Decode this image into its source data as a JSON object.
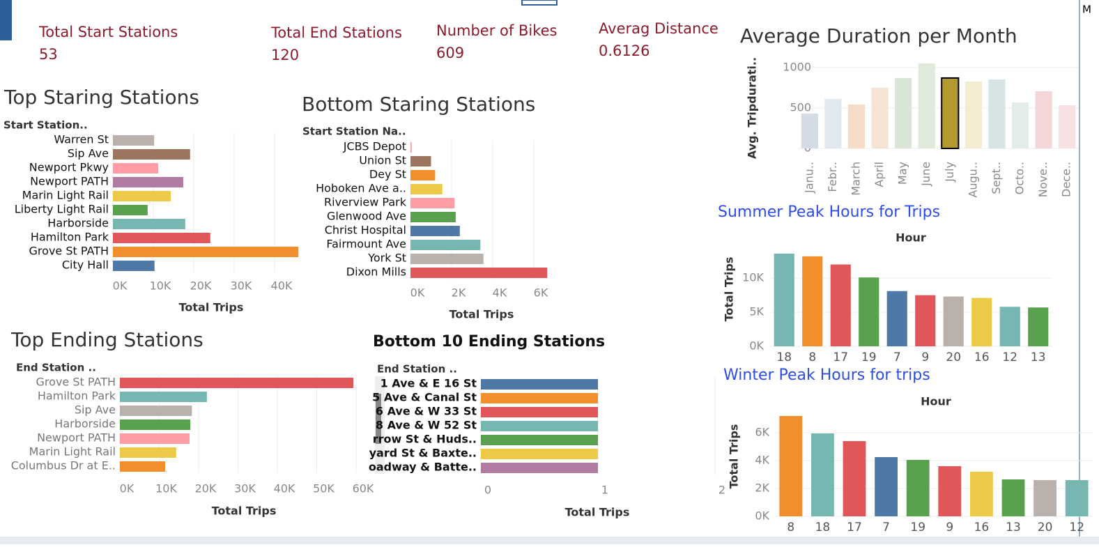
{
  "kpis": [
    {
      "label": "Total Start Stations",
      "value": 53
    },
    {
      "label": "Total End  Stations",
      "value": 120
    },
    {
      "label": "Number of Bikes",
      "value": 609
    },
    {
      "label": "Averag Distance",
      "value": 0.6126
    }
  ],
  "legend_title": "M",
  "chart_data": [
    {
      "type": "hbar",
      "title": "Top Staring Stations",
      "category_header": "Start Station..",
      "x_label": "Total Trips",
      "categories": [
        "Warren St",
        "Sip Ave",
        "Newport Pkwy",
        "Newport PATH",
        "Marin Light Rail",
        "Liberty Light Rail",
        "Harborside",
        "Hamilton Park",
        "Grove St PATH",
        "City Hall"
      ],
      "values": [
        10200,
        19100,
        11200,
        17400,
        14300,
        8600,
        17900,
        24100,
        45900,
        10300
      ],
      "colors": [
        "#bab0ac",
        "#9c755f",
        "#ff9da7",
        "#b07aa1",
        "#edc948",
        "#59a14f",
        "#76b7b2",
        "#e15759",
        "#f28e2b",
        "#4e79a7"
      ],
      "xlim": [
        0,
        46000
      ],
      "xticks": [
        {
          "value": 0,
          "label": "0K"
        },
        {
          "value": 10000,
          "label": "10K"
        },
        {
          "value": 20000,
          "label": "20K"
        },
        {
          "value": 30000,
          "label": "30K"
        },
        {
          "value": 40000,
          "label": "40K"
        }
      ]
    },
    {
      "type": "hbar",
      "title": "Bottom Staring Stations",
      "category_header": "Start Station Na..",
      "x_label": "Total Trips",
      "categories": [
        "JCBS Depot",
        "Union St",
        "Dey St",
        "Hoboken Ave a..",
        "Riverview Park",
        "Glenwood Ave",
        "Christ Hospital",
        "Fairmount Ave",
        "York St",
        "Dixon Mills"
      ],
      "values": [
        60,
        1000,
        1200,
        1550,
        2150,
        2200,
        2400,
        3400,
        3550,
        6650
      ],
      "colors": [
        "#ff9da7",
        "#9c755f",
        "#f28e2b",
        "#edc948",
        "#ff9da7",
        "#59a14f",
        "#4e79a7",
        "#76b7b2",
        "#bab0ac",
        "#e15759"
      ],
      "xlim": [
        0,
        6650
      ],
      "xticks": [
        {
          "value": 0,
          "label": "0K"
        },
        {
          "value": 2000,
          "label": "2K"
        },
        {
          "value": 4000,
          "label": "4K"
        },
        {
          "value": 6000,
          "label": "6K"
        }
      ]
    },
    {
      "type": "hbar",
      "title": "Top Ending Stations",
      "category_header": "End Station ..",
      "x_label": "Total Trips",
      "categories": [
        "Grove St PATH",
        "Hamilton Park",
        "Sip Ave",
        "Harborside",
        "Newport PATH",
        "Marin Light Rail",
        "Columbus Dr at E.."
      ],
      "values": [
        59300,
        22100,
        18300,
        17900,
        17700,
        14300,
        11500
      ],
      "colors": [
        "#e15759",
        "#76b7b2",
        "#bab0ac",
        "#59a14f",
        "#ff9da7",
        "#edc948",
        "#f28e2b"
      ],
      "xlim": [
        0,
        60000
      ],
      "xticks": [
        {
          "value": 0,
          "label": "0K"
        },
        {
          "value": 10000,
          "label": "10K"
        },
        {
          "value": 20000,
          "label": "20K"
        },
        {
          "value": 30000,
          "label": "30K"
        },
        {
          "value": 40000,
          "label": "40K"
        },
        {
          "value": 50000,
          "label": "50K"
        },
        {
          "value": 60000,
          "label": "60K"
        }
      ]
    },
    {
      "type": "hbar",
      "title": "Bottom 10  Ending Stations",
      "category_header": "End Station ..",
      "x_label": "Total Trips",
      "categories": [
        "1 Ave & E 16 St",
        "5 Ave & Canal St",
        "6 Ave & W 33 St",
        "8 Ave & W 52 St",
        "rrow St & Huds..",
        "yard St & Baxte..",
        "oadway & Batte.."
      ],
      "values": [
        1,
        1,
        1,
        1,
        1,
        1,
        1
      ],
      "colors": [
        "#4e79a7",
        "#f28e2b",
        "#e15759",
        "#76b7b2",
        "#59a14f",
        "#edc948",
        "#b07aa1"
      ],
      "xlim": [
        0,
        2
      ],
      "xticks": [
        0,
        1,
        2
      ]
    },
    {
      "type": "vbar",
      "title": "Average Duration per Month",
      "y_label": "Avg. Tripdurati..",
      "categories": [
        "Janu..",
        "Febr..",
        "March",
        "April",
        "May",
        "June",
        "July",
        "Augu..",
        "Sept..",
        "Octo..",
        "Nove..",
        "Dece.."
      ],
      "values": [
        431,
        612,
        543,
        750,
        871,
        1052,
        871,
        828,
        853,
        569,
        707,
        534
      ],
      "colors": [
        "#d3dbe4",
        "#e1e8f0",
        "#f5dcc6",
        "#f5e3d3",
        "#d9e6d6",
        "#dfeadb",
        "#b39a2e",
        "#f3ecd2",
        "#d6e5e4",
        "#e2ecea",
        "#f3d7d8",
        "#f6e1e3"
      ],
      "ylim": [
        0,
        1060
      ],
      "yticks": [
        0,
        500,
        1000
      ]
    },
    {
      "type": "vbar",
      "title": "Summer Peak Hours for Trips",
      "x_header": "Hour",
      "y_label": "Total Trips",
      "categories": [
        "18",
        "8",
        "17",
        "19",
        "7",
        "9",
        "20",
        "16",
        "12",
        "13"
      ],
      "values": [
        13600,
        13200,
        12000,
        10100,
        8100,
        7500,
        7300,
        7100,
        5800,
        5700
      ],
      "colors": [
        "#76b7b2",
        "#f28e2b",
        "#e15759",
        "#59a14f",
        "#4e79a7",
        "#e15759",
        "#bab0ac",
        "#edc948",
        "#76b7b2",
        "#59a14f"
      ],
      "ylim": [
        0,
        14000
      ],
      "yticks": [
        {
          "value": 0,
          "label": "0K"
        },
        {
          "value": 5000,
          "label": "5K"
        },
        {
          "value": 10000,
          "label": "10K"
        }
      ]
    },
    {
      "type": "vbar",
      "title": "Winter Peak Hours for trips",
      "x_header": "Hour",
      "y_label": "Total Trips",
      "categories": [
        "8",
        "18",
        "17",
        "7",
        "19",
        "9",
        "16",
        "13",
        "20",
        "12"
      ],
      "values": [
        7200,
        5950,
        5400,
        4250,
        4050,
        3600,
        3200,
        2650,
        2600,
        2600
      ],
      "colors": [
        "#f28e2b",
        "#76b7b2",
        "#e15759",
        "#4e79a7",
        "#59a14f",
        "#e15759",
        "#edc948",
        "#59a14f",
        "#bab0ac",
        "#76b7b2"
      ],
      "ylim": [
        0,
        7300
      ],
      "yticks": [
        {
          "value": 0,
          "label": "0K"
        },
        {
          "value": 2000,
          "label": "2K"
        },
        {
          "value": 4000,
          "label": "4K"
        },
        {
          "value": 6000,
          "label": "6K"
        }
      ]
    }
  ]
}
